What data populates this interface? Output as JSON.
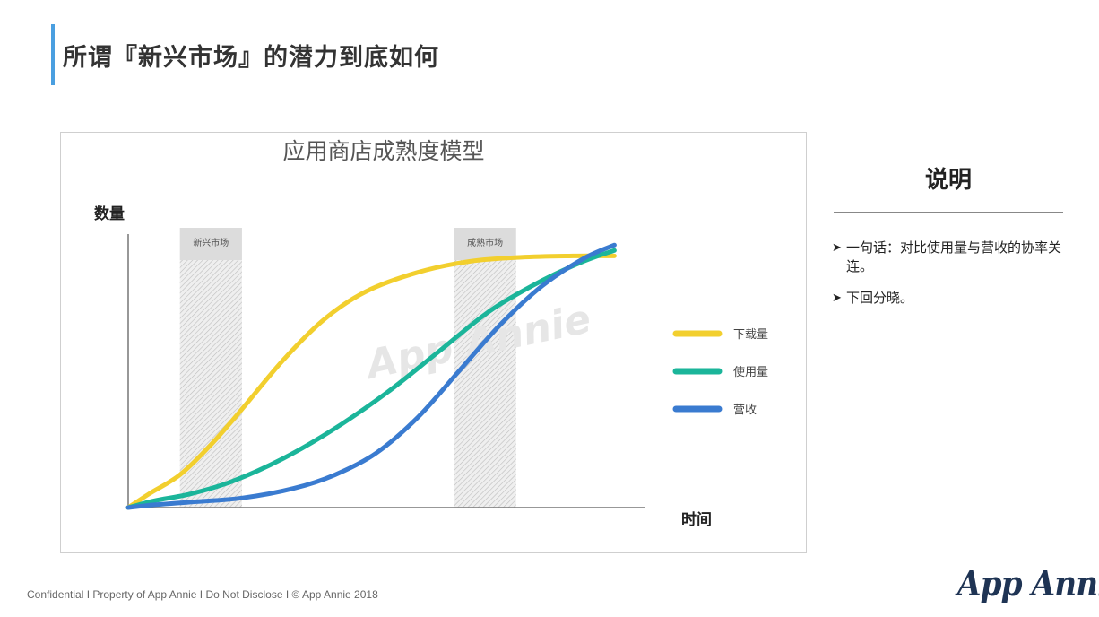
{
  "page": {
    "title": "所谓『新兴市场』的潜力到底如何",
    "footer": "Confidential  I  Property of App Annie  I  Do Not Disclose  I  © App Annie 2018",
    "logo": "App Annie",
    "accent_color": "#4a9fe0"
  },
  "side": {
    "title": "说明",
    "notes": [
      "一句话：对比使用量与营收的协率关连。",
      "下回分晓。"
    ]
  },
  "chart_data": {
    "type": "line",
    "title": "应用商店成熟度模型",
    "ylabel": "数量",
    "xlabel": "时间",
    "watermark": "App Annie",
    "xlim": [
      0,
      100
    ],
    "ylim": [
      0,
      100
    ],
    "regions": [
      {
        "label": "新兴市场",
        "x": [
          10,
          22
        ]
      },
      {
        "label": "成熟市场",
        "x": [
          63,
          75
        ]
      }
    ],
    "series": [
      {
        "name": "下载量",
        "color": "#f2cf2e",
        "x": [
          0,
          4,
          10,
          16,
          22,
          30,
          38,
          46,
          56,
          66,
          76,
          86,
          94
        ],
        "y": [
          0,
          5,
          12,
          23,
          36,
          54,
          69,
          79,
          86,
          90,
          91.5,
          92,
          92
        ]
      },
      {
        "name": "使用量",
        "color": "#1bb59a",
        "x": [
          0,
          5,
          12,
          20,
          30,
          40,
          50,
          60,
          70,
          80,
          88,
          94
        ],
        "y": [
          0,
          2.5,
          5,
          9.5,
          18,
          29,
          42,
          57,
          72,
          83,
          90,
          94
        ]
      },
      {
        "name": "营收",
        "color": "#3a7bd0",
        "x": [
          0,
          5,
          12,
          22,
          32,
          40,
          48,
          56,
          64,
          72,
          80,
          88,
          94
        ],
        "y": [
          0,
          1,
          2,
          3.5,
          7,
          12,
          20,
          33,
          50,
          67,
          81,
          91,
          96
        ]
      }
    ]
  }
}
